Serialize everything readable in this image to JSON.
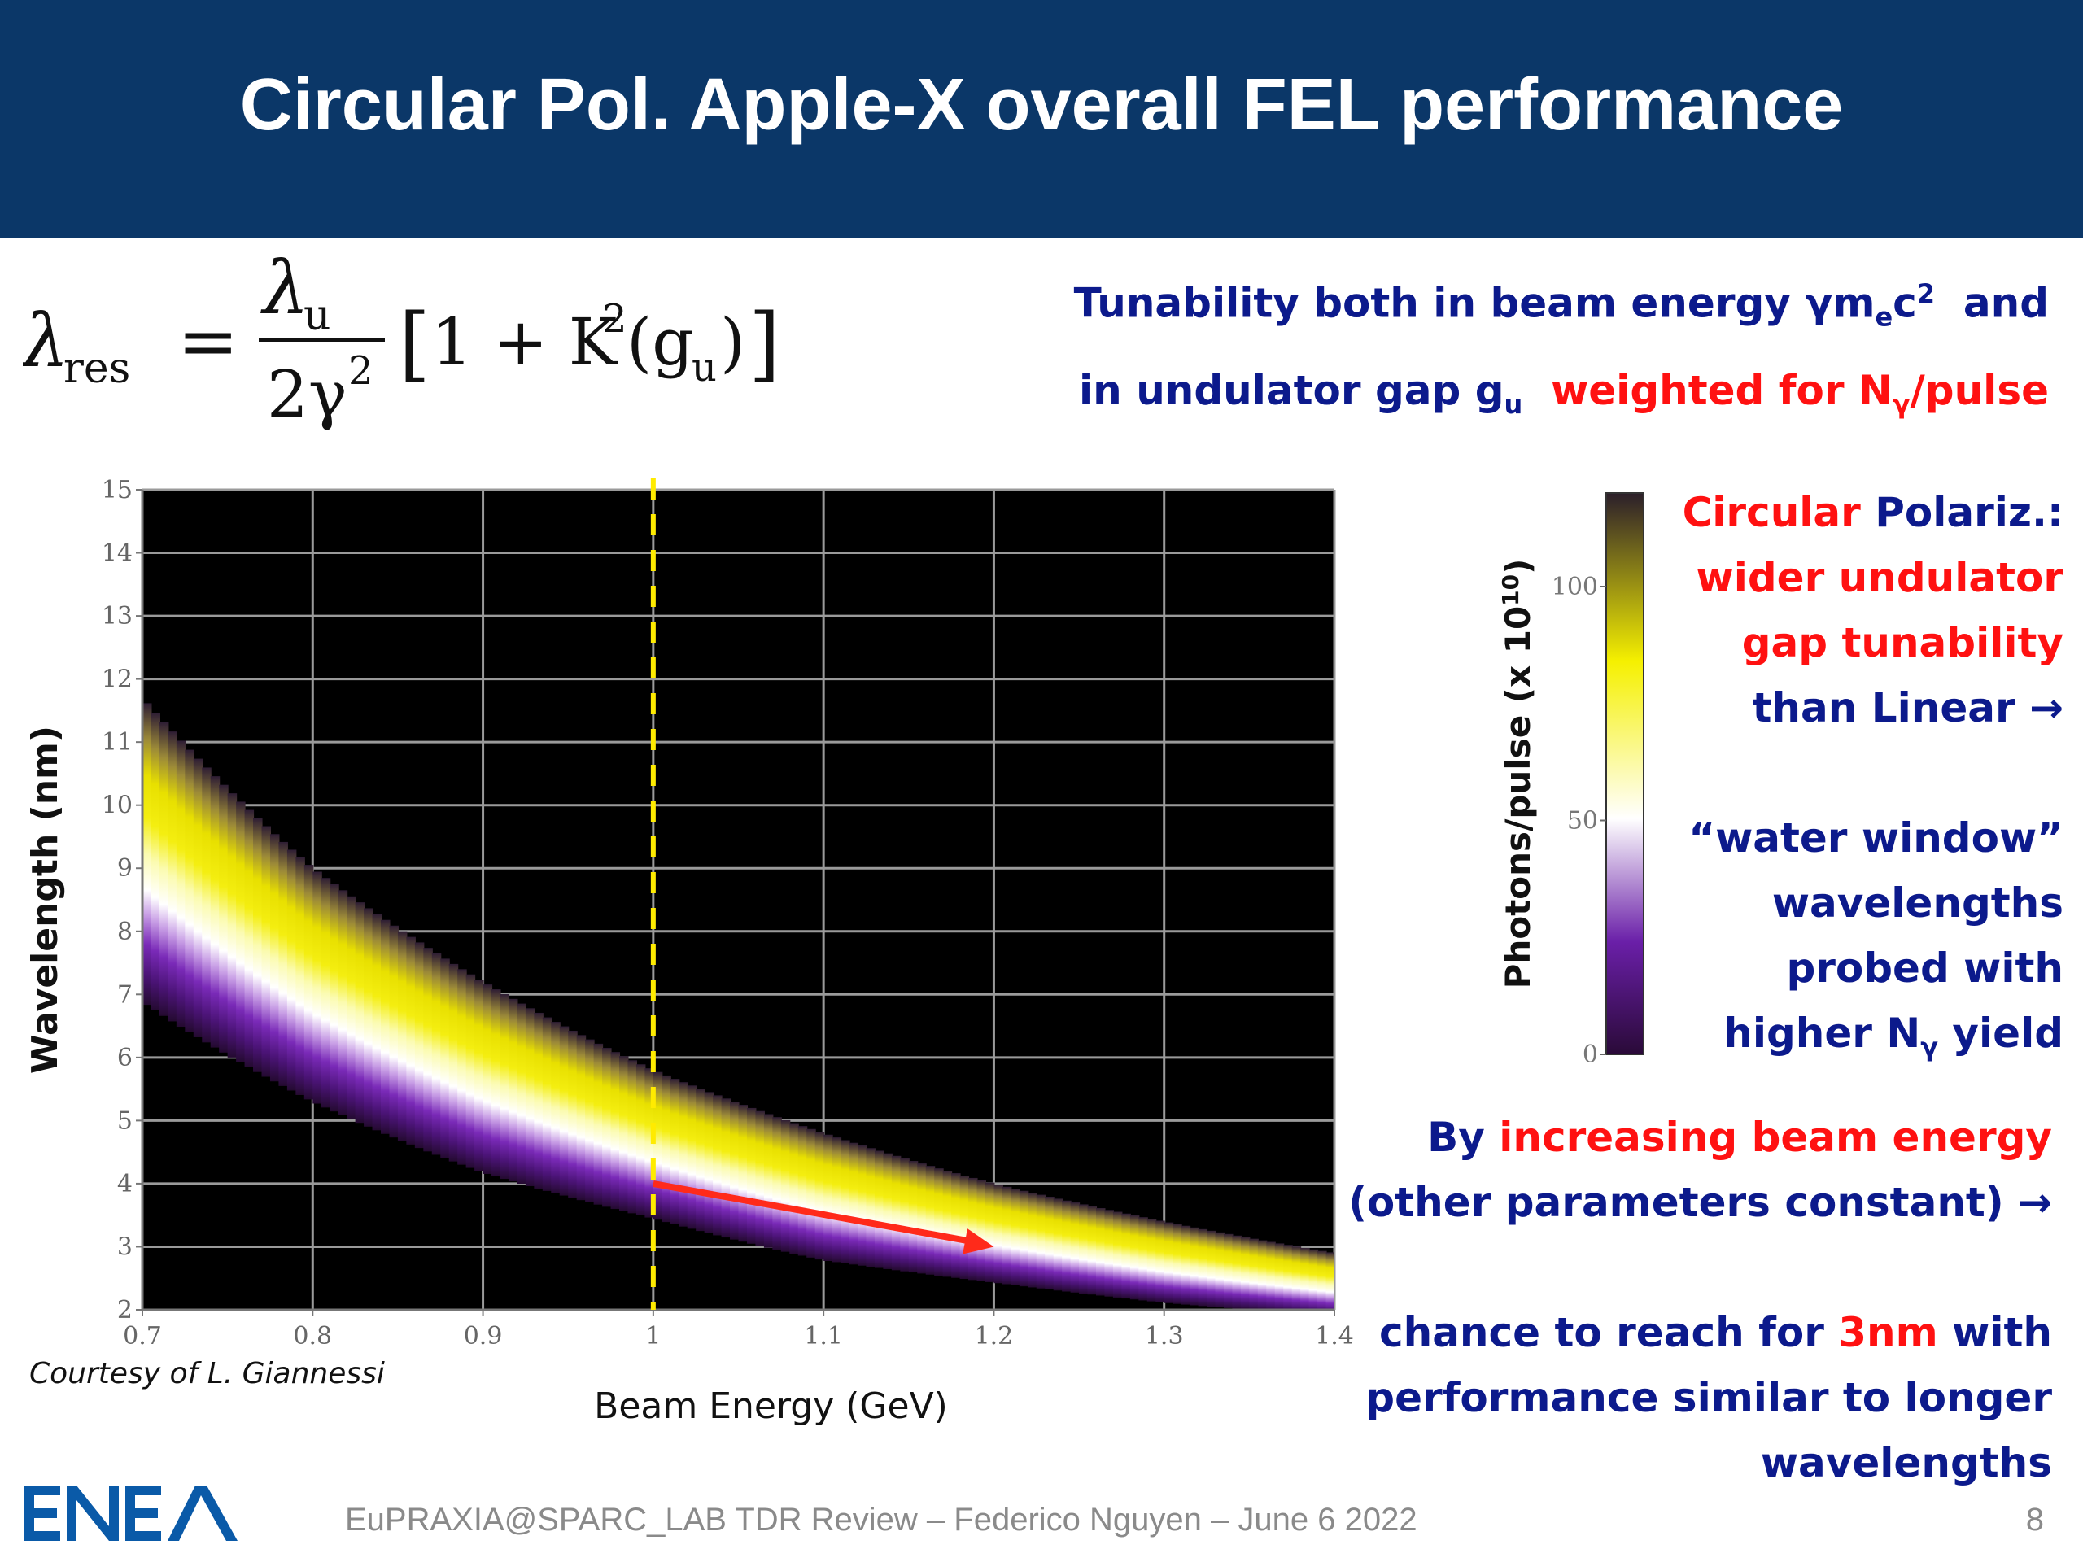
{
  "slide": {
    "title": "Circular Pol. Apple-X overall FEL performance",
    "formula": {
      "lhs": "λ",
      "lhs_sub": "res",
      "num": "λ",
      "num_sub": "u",
      "den": "2γ",
      "den_sup": "2",
      "bracket_open": "[",
      "one_plus": "1 + K",
      "k_sup": "2",
      "g_open": "(g",
      "g_sub": "u",
      "g_close": ")",
      "bracket_close": "]"
    },
    "tunability": {
      "line1_a": "Tunability both in beam energy γm",
      "line1_sub": "e",
      "line1_b": "c",
      "line1_sup": "2",
      "line1_c": "  and",
      "line2_a": "in undulator gap g",
      "line2_sub": "u",
      "line2_b": "  weighted for N",
      "line2_sub2": "γ",
      "line2_c": "/pulse"
    },
    "side_note": {
      "l1_red": "Circular",
      "l1_navy": " Polariz.:",
      "l2": "wider undulator",
      "l3": "gap tunability",
      "l4": "than Linear",
      "arrow": "→",
      "l5": "“water window”",
      "l6": "wavelengths",
      "l7": "probed with",
      "l8_a": "higher N",
      "l8_sub": "γ",
      "l8_b": " yield"
    },
    "energy_note": {
      "l1_navy": "By ",
      "l1_red": "increasing beam energy",
      "l2": "(other parameters constant)",
      "arrow": "→"
    },
    "chance_note": {
      "l1_a": "chance to reach for ",
      "l1_red": "3nm",
      "l1_b": " with",
      "l2": "performance similar to longer",
      "l3": "wavelengths"
    },
    "credit": "Courtesy of L. Giannessi",
    "footer": "EuPRAXIA@SPARC_LAB TDR Review – Federico Nguyen – June 6  2022",
    "page_number": "8",
    "logo_text": "ENEA"
  },
  "chart_data": {
    "type": "heatmap",
    "xlabel": "Beam Energy (GeV)",
    "ylabel": "Wavelength (nm)",
    "x_ticks": [
      "0.7",
      "0.8",
      "0.9",
      "1",
      "1.1",
      "1.2",
      "1.3",
      "1.4"
    ],
    "y_ticks": [
      "2",
      "3",
      "4",
      "5",
      "6",
      "7",
      "8",
      "9",
      "10",
      "11",
      "12",
      "13",
      "14",
      "15"
    ],
    "xlim": [
      0.7,
      1.4
    ],
    "ylim": [
      2,
      15
    ],
    "grid": true,
    "background": "#000000",
    "upper_edge_nm": {
      "x": [
        0.7,
        0.8,
        0.9,
        1.0,
        1.1,
        1.2,
        1.3,
        1.4
      ],
      "y": [
        11.7,
        9.0,
        7.2,
        5.8,
        4.8,
        4.0,
        3.4,
        2.9
      ]
    },
    "lower_edge_nm": {
      "x": [
        0.7,
        0.8,
        0.9,
        1.0,
        1.1,
        1.2,
        1.3,
        1.4
      ],
      "y": [
        7.4,
        5.7,
        4.5,
        3.7,
        3.0,
        2.6,
        2.25,
        2.0
      ]
    },
    "marker_line_x": 1.0,
    "arrow": {
      "x1": 1.0,
      "y1": 4.0,
      "x2": 1.2,
      "y2": 3.0
    },
    "colorbar": {
      "label": "Photons/pulse (x 10",
      "label_sup": "10",
      "label_close": ")",
      "ticks": [
        "0",
        "50",
        "100"
      ],
      "range": [
        0,
        120
      ],
      "colors": [
        "#2a0a38",
        "#6a1fa8",
        "#ffffff",
        "#f5f000",
        "#2b1e2a"
      ]
    },
    "colors": {
      "marker_line": "#ffeb00",
      "arrow": "#ff2a1a",
      "grid": "#9a9a9a",
      "header": "#0b3768"
    }
  }
}
